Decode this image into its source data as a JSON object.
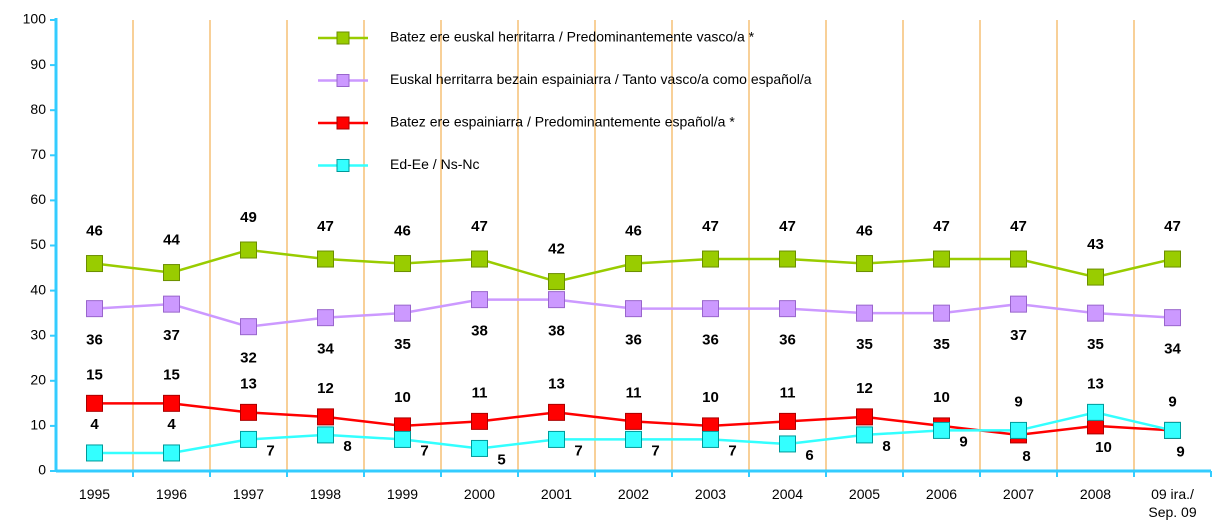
{
  "chart_data": {
    "type": "line",
    "categories": [
      "1995",
      "1996",
      "1997",
      "1998",
      "1999",
      "2000",
      "2001",
      "2002",
      "2003",
      "2004",
      "2005",
      "2006",
      "2007",
      "2008",
      "09 ira./ Sep. 09"
    ],
    "series": [
      {
        "name": "Batez ere euskal herritarra / Predominantemente vasco/a *",
        "color": "#99cc00",
        "values": [
          46,
          44,
          49,
          47,
          46,
          47,
          42,
          46,
          47,
          47,
          46,
          47,
          47,
          43,
          47
        ]
      },
      {
        "name": "Euskal herritarra bezain espainiarra / Tanto vasco/a como español/a",
        "color": "#cc99ff",
        "values": [
          36,
          37,
          32,
          34,
          35,
          38,
          38,
          36,
          36,
          36,
          35,
          35,
          37,
          35,
          34
        ]
      },
      {
        "name": "Batez ere espainiarra / Predominantemente español/a *",
        "color": "#ff0000",
        "values": [
          15,
          15,
          13,
          12,
          10,
          11,
          13,
          11,
          10,
          11,
          12,
          10,
          8,
          10,
          9
        ]
      },
      {
        "name": "Ed-Ee / Ns-Nc",
        "color": "#33ffff",
        "values": [
          4,
          4,
          7,
          8,
          7,
          5,
          7,
          7,
          7,
          6,
          8,
          9,
          9,
          13,
          9
        ]
      }
    ],
    "ylim": [
      0,
      100
    ],
    "yticks": [
      0,
      10,
      20,
      30,
      40,
      50,
      60,
      70,
      80,
      90,
      100
    ],
    "grid": false
  }
}
